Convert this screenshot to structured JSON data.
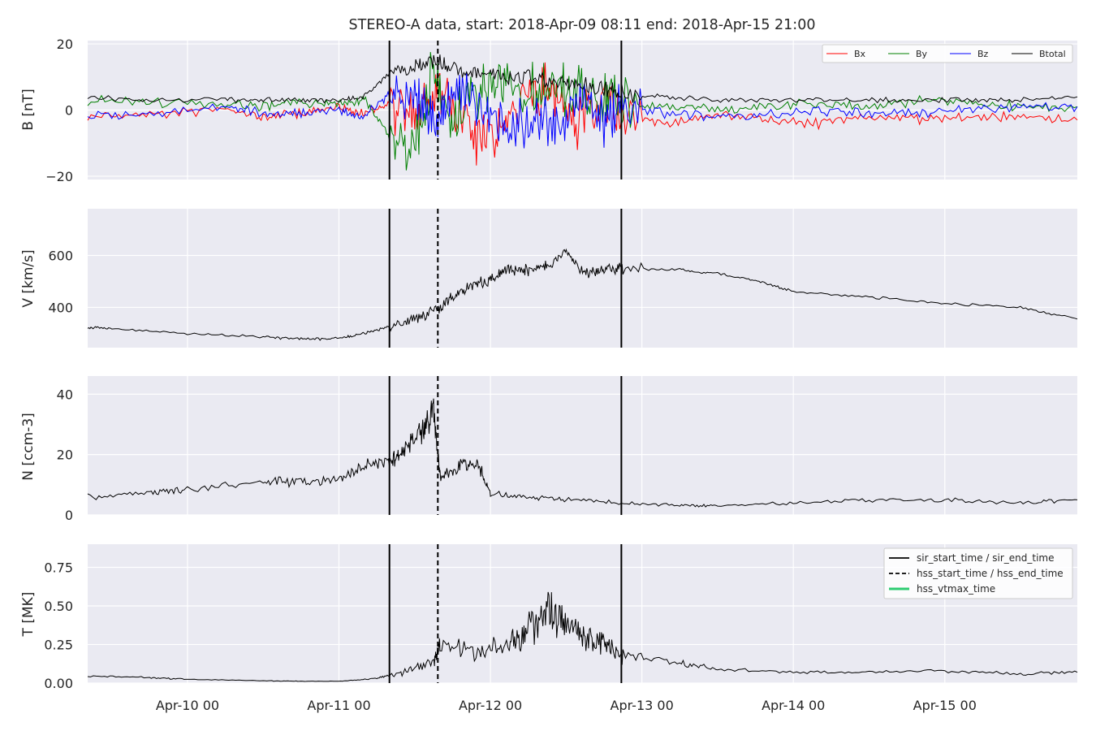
{
  "chart_data": {
    "type": "line",
    "title": "STEREO-A data, start: 2018-Apr-09 08:11  end: 2018-Apr-15 21:00",
    "x_range": [
      "2018-04-09T08:11",
      "2018-04-15T21:00"
    ],
    "x_ticks": [
      {
        "t": "2018-04-10T00:00",
        "label": "Apr-10 00"
      },
      {
        "t": "2018-04-11T00:00",
        "label": "Apr-11 00"
      },
      {
        "t": "2018-04-12T00:00",
        "label": "Apr-12 00"
      },
      {
        "t": "2018-04-13T00:00",
        "label": "Apr-13 00"
      },
      {
        "t": "2018-04-14T00:00",
        "label": "Apr-14 00"
      },
      {
        "t": "2018-04-15T00:00",
        "label": "Apr-15 00"
      }
    ],
    "markers": {
      "sir_start_time": "2018-04-11T08:00",
      "hss_start_time": "2018-04-11T15:40",
      "sir_end_time": "2018-04-12T20:45"
    },
    "legend_markers": {
      "placement": "upper-right",
      "entries": [
        {
          "label": "sir_start_time / sir_end_time",
          "style": "solid",
          "color": "#000000"
        },
        {
          "label": "hss_start_time / hss_end_time",
          "style": "dashed",
          "color": "#000000"
        },
        {
          "label": "hss_vtmax_time",
          "style": "solid",
          "color": "#2ecc71"
        }
      ]
    },
    "grid": true,
    "background": "#eaeaf2",
    "panels": [
      {
        "ylabel": "B [nT]",
        "ylim": [
          -21,
          21
        ],
        "yticks": [
          {
            "v": -20,
            "label": "−20"
          },
          {
            "v": 0,
            "label": "0"
          },
          {
            "v": 20,
            "label": "20"
          }
        ],
        "legend": {
          "placement": "upper-right",
          "columns": 4
        },
        "series": [
          {
            "name": "Bx",
            "color": "#ff0000",
            "x": [
              "2018-04-09T08:11",
              "2018-04-09T18:00",
              "2018-04-10T06:00",
              "2018-04-10T12:00",
              "2018-04-10T18:00",
              "2018-04-11T00:00",
              "2018-04-11T04:00",
              "2018-04-11T08:00",
              "2018-04-11T12:00",
              "2018-04-11T15:00",
              "2018-04-11T18:00",
              "2018-04-11T22:00",
              "2018-04-12T02:00",
              "2018-04-12T06:00",
              "2018-04-12T10:00",
              "2018-04-12T14:00",
              "2018-04-12T18:00",
              "2018-04-12T21:00",
              "2018-04-13T04:00",
              "2018-04-13T12:00",
              "2018-04-13T20:00",
              "2018-04-14T04:00",
              "2018-04-14T12:00",
              "2018-04-14T20:00",
              "2018-04-15T04:00",
              "2018-04-15T12:00",
              "2018-04-15T21:00"
            ],
            "y": [
              -2,
              -1,
              0,
              -2,
              -1,
              1,
              -1,
              2,
              0,
              8,
              -2,
              -8,
              -5,
              6,
              5,
              -4,
              2,
              -2,
              -4,
              -1,
              -3,
              -4,
              -2,
              -3,
              -2,
              -2,
              -3
            ]
          },
          {
            "name": "By",
            "color": "#008000",
            "x": [
              "2018-04-09T08:11",
              "2018-04-09T18:00",
              "2018-04-10T06:00",
              "2018-04-10T12:00",
              "2018-04-10T18:00",
              "2018-04-11T00:00",
              "2018-04-11T04:00",
              "2018-04-11T08:00",
              "2018-04-11T12:00",
              "2018-04-11T15:00",
              "2018-04-11T18:00",
              "2018-04-11T22:00",
              "2018-04-12T02:00",
              "2018-04-12T06:00",
              "2018-04-12T10:00",
              "2018-04-12T14:00",
              "2018-04-12T18:00",
              "2018-04-12T21:00",
              "2018-04-13T04:00",
              "2018-04-13T12:00",
              "2018-04-13T20:00",
              "2018-04-14T04:00",
              "2018-04-14T12:00",
              "2018-04-14T20:00",
              "2018-04-15T04:00",
              "2018-04-15T12:00",
              "2018-04-15T21:00"
            ],
            "y": [
              3,
              2,
              2,
              1,
              2,
              2,
              3,
              -8,
              -10,
              12,
              -4,
              6,
              8,
              5,
              7,
              6,
              3,
              2,
              1,
              0,
              1,
              2,
              1,
              3,
              2,
              1,
              1
            ]
          },
          {
            "name": "Bz",
            "color": "#0000ff",
            "x": [
              "2018-04-09T08:11",
              "2018-04-09T18:00",
              "2018-04-10T06:00",
              "2018-04-10T12:00",
              "2018-04-10T18:00",
              "2018-04-11T00:00",
              "2018-04-11T04:00",
              "2018-04-11T08:00",
              "2018-04-11T12:00",
              "2018-04-11T15:00",
              "2018-04-11T18:00",
              "2018-04-11T22:00",
              "2018-04-12T02:00",
              "2018-04-12T06:00",
              "2018-04-12T10:00",
              "2018-04-12T14:00",
              "2018-04-12T18:00",
              "2018-04-12T21:00",
              "2018-04-13T04:00",
              "2018-04-13T12:00",
              "2018-04-13T20:00",
              "2018-04-14T04:00",
              "2018-04-14T12:00",
              "2018-04-14T20:00",
              "2018-04-15T04:00",
              "2018-04-15T12:00",
              "2018-04-15T21:00"
            ],
            "y": [
              -2,
              -1,
              1,
              -1,
              -1,
              0,
              -2,
              5,
              4,
              -3,
              6,
              2,
              -4,
              -3,
              -5,
              4,
              -3,
              1,
              -1,
              -2,
              -1,
              0,
              -1,
              -1,
              0,
              1,
              1
            ]
          },
          {
            "name": "Btotal",
            "color": "#000000",
            "x": [
              "2018-04-09T08:11",
              "2018-04-09T18:00",
              "2018-04-10T06:00",
              "2018-04-10T12:00",
              "2018-04-10T18:00",
              "2018-04-11T00:00",
              "2018-04-11T04:00",
              "2018-04-11T08:00",
              "2018-04-11T12:00",
              "2018-04-11T15:00",
              "2018-04-11T18:00",
              "2018-04-11T22:00",
              "2018-04-12T02:00",
              "2018-04-12T06:00",
              "2018-04-12T10:00",
              "2018-04-12T14:00",
              "2018-04-12T18:00",
              "2018-04-12T21:00",
              "2018-04-13T04:00",
              "2018-04-13T12:00",
              "2018-04-13T20:00",
              "2018-04-14T04:00",
              "2018-04-14T12:00",
              "2018-04-14T20:00",
              "2018-04-15T04:00",
              "2018-04-15T12:00",
              "2018-04-15T21:00"
            ],
            "y": [
              4,
              3,
              3,
              3,
              3,
              3,
              4,
              11,
              13,
              15,
              12,
              11,
              10,
              10,
              9,
              8,
              6,
              5,
              4,
              3,
              3,
              3,
              3,
              3,
              3,
              3,
              4
            ]
          }
        ]
      },
      {
        "ylabel": "V [km/s]",
        "ylim": [
          245,
          780
        ],
        "yticks": [
          {
            "v": 400,
            "label": "400"
          },
          {
            "v": 600,
            "label": "600"
          }
        ],
        "series": [
          {
            "name": "",
            "color": "#000000",
            "x": [
              "2018-04-09T08:11",
              "2018-04-09T12:00",
              "2018-04-10T00:00",
              "2018-04-10T12:00",
              "2018-04-10T18:00",
              "2018-04-11T00:00",
              "2018-04-11T04:00",
              "2018-04-11T08:00",
              "2018-04-11T12:00",
              "2018-04-11T15:40",
              "2018-04-11T18:00",
              "2018-04-11T21:00",
              "2018-04-12T00:00",
              "2018-04-12T03:00",
              "2018-04-12T06:00",
              "2018-04-12T09:00",
              "2018-04-12T12:00",
              "2018-04-12T15:00",
              "2018-04-12T18:00",
              "2018-04-12T21:00",
              "2018-04-13T06:00",
              "2018-04-13T12:00",
              "2018-04-13T18:00",
              "2018-04-14T00:00",
              "2018-04-14T12:00",
              "2018-04-15T00:00",
              "2018-04-15T12:00",
              "2018-04-15T21:00"
            ],
            "y": [
              323,
              318,
              300,
              285,
              278,
              280,
              300,
              325,
              360,
              390,
              440,
              480,
              510,
              550,
              540,
              560,
              610,
              530,
              540,
              550,
              545,
              530,
              505,
              460,
              440,
              415,
              400,
              355
            ]
          }
        ]
      },
      {
        "ylabel": "N [ccm-3]",
        "ylim": [
          0,
          46
        ],
        "yticks": [
          {
            "v": 0,
            "label": "0"
          },
          {
            "v": 20,
            "label": "20"
          },
          {
            "v": 40,
            "label": "40"
          }
        ],
        "series": [
          {
            "name": "",
            "color": "#000000",
            "x": [
              "2018-04-09T08:11",
              "2018-04-09T18:00",
              "2018-04-10T00:00",
              "2018-04-10T12:00",
              "2018-04-10T18:00",
              "2018-04-11T00:00",
              "2018-04-11T04:00",
              "2018-04-11T08:00",
              "2018-04-11T10:00",
              "2018-04-11T13:00",
              "2018-04-11T15:00",
              "2018-04-11T16:00",
              "2018-04-11T19:00",
              "2018-04-11T22:00",
              "2018-04-12T00:00",
              "2018-04-12T06:00",
              "2018-04-12T12:00",
              "2018-04-12T20:45",
              "2018-04-13T06:00",
              "2018-04-13T12:00",
              "2018-04-14T00:00",
              "2018-04-14T12:00",
              "2018-04-15T00:00",
              "2018-04-15T12:00",
              "2018-04-15T21:00"
            ],
            "y": [
              6,
              7,
              9,
              11,
              11,
              11,
              17,
              18,
              20,
              28,
              34,
              13,
              16,
              17,
              7,
              6,
              5,
              4,
              3,
              3,
              4,
              5,
              5,
              4,
              5
            ]
          }
        ]
      },
      {
        "ylabel": "T [MK]",
        "ylim": [
          0,
          0.9
        ],
        "yticks": [
          {
            "v": 0,
            "label": "0.00"
          },
          {
            "v": 0.25,
            "label": "0.25"
          },
          {
            "v": 0.5,
            "label": "0.50"
          },
          {
            "v": 0.75,
            "label": "0.75"
          }
        ],
        "series": [
          {
            "name": "",
            "color": "#000000",
            "x": [
              "2018-04-09T08:11",
              "2018-04-09T18:00",
              "2018-04-10T00:00",
              "2018-04-10T12:00",
              "2018-04-10T18:00",
              "2018-04-11T00:00",
              "2018-04-11T06:00",
              "2018-04-11T10:00",
              "2018-04-11T15:00",
              "2018-04-11T16:00",
              "2018-04-11T22:00",
              "2018-04-12T03:00",
              "2018-04-12T06:00",
              "2018-04-12T09:00",
              "2018-04-12T12:00",
              "2018-04-12T15:00",
              "2018-04-12T18:00",
              "2018-04-12T21:00",
              "2018-04-13T06:00",
              "2018-04-13T12:00",
              "2018-04-14T00:00",
              "2018-04-14T12:00",
              "2018-04-15T00:00",
              "2018-04-15T12:00",
              "2018-04-15T21:00"
            ],
            "y": [
              0.045,
              0.035,
              0.025,
              0.015,
              0.012,
              0.012,
              0.03,
              0.07,
              0.14,
              0.25,
              0.2,
              0.25,
              0.35,
              0.45,
              0.38,
              0.3,
              0.25,
              0.18,
              0.13,
              0.09,
              0.07,
              0.07,
              0.08,
              0.06,
              0.07
            ]
          }
        ]
      }
    ]
  }
}
